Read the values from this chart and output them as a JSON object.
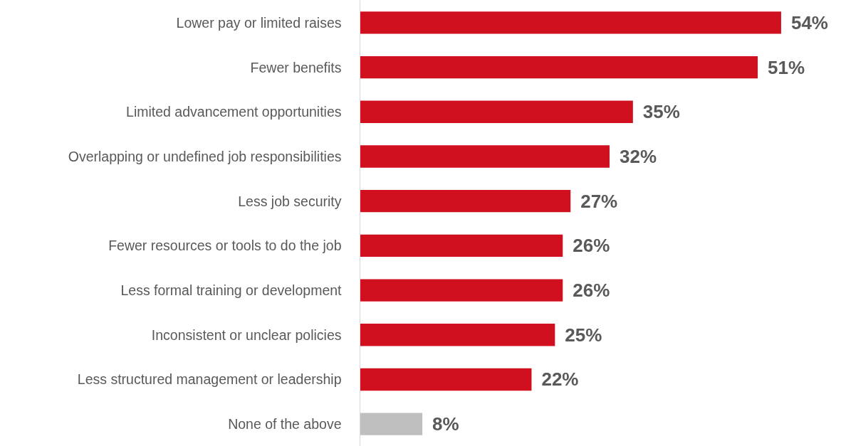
{
  "chart_data": {
    "type": "bar",
    "orientation": "horizontal",
    "categories": [
      "Lower pay or limited raises",
      "Fewer benefits",
      "Limited advancement opportunities",
      "Overlapping or undefined job responsibilities",
      "Less job security",
      "Fewer resources or tools to do the job",
      "Less formal training or development",
      "Inconsistent or unclear policies",
      "Less structured management or leadership",
      "None of the above"
    ],
    "values": [
      54,
      51,
      35,
      32,
      27,
      26,
      26,
      25,
      22,
      8
    ],
    "colors": [
      "#d0101f",
      "#d0101f",
      "#d0101f",
      "#d0101f",
      "#d0101f",
      "#d0101f",
      "#d0101f",
      "#d0101f",
      "#d0101f",
      "#bfbfbf"
    ],
    "value_labels": [
      "54%",
      "51%",
      "35%",
      "32%",
      "27%",
      "26%",
      "26%",
      "25%",
      "22%",
      "8%"
    ],
    "grid": false
  }
}
